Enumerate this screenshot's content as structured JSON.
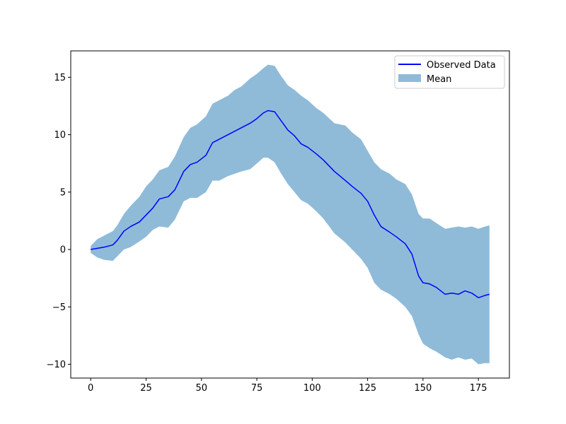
{
  "chart_data": {
    "type": "line",
    "title": "",
    "xlabel": "",
    "ylabel": "",
    "xlim": [
      -9,
      189
    ],
    "ylim": [
      -11.2,
      17.3
    ],
    "xticks": [
      0,
      25,
      50,
      75,
      100,
      125,
      150,
      175
    ],
    "yticks": [
      -10,
      -5,
      0,
      5,
      10,
      15
    ],
    "grid": false,
    "legend_position": "top-right",
    "colors": {
      "line": "#0000ff",
      "band": "#1f77b4",
      "band_opacity": 0.5
    },
    "series": [
      {
        "name": "Observed Data",
        "kind": "line",
        "x": [
          0,
          3,
          6,
          10,
          12,
          15,
          18,
          22,
          25,
          28,
          31,
          35,
          38,
          42,
          45,
          48,
          52,
          55,
          58,
          62,
          65,
          68,
          72,
          75,
          78,
          80,
          83,
          86,
          89,
          92,
          95,
          98,
          102,
          105,
          110,
          115,
          118,
          122,
          125,
          128,
          131,
          135,
          138,
          142,
          145,
          148,
          150,
          153,
          156,
          160,
          163,
          166,
          169,
          172,
          175,
          178,
          180
        ],
        "y": [
          0,
          0.1,
          0.2,
          0.4,
          0.8,
          1.6,
          2.0,
          2.4,
          3.0,
          3.6,
          4.4,
          4.6,
          5.2,
          6.8,
          7.4,
          7.6,
          8.2,
          9.3,
          9.6,
          10.0,
          10.3,
          10.6,
          11.0,
          11.4,
          11.9,
          12.1,
          12.0,
          11.2,
          10.4,
          9.9,
          9.2,
          8.9,
          8.3,
          7.8,
          6.8,
          6.0,
          5.5,
          4.9,
          4.2,
          3.0,
          2.0,
          1.5,
          1.1,
          0.5,
          -0.4,
          -2.3,
          -2.9,
          -3.0,
          -3.3,
          -3.9,
          -3.8,
          -3.9,
          -3.6,
          -3.8,
          -4.2,
          -4.0,
          -3.9
        ]
      },
      {
        "name": "Mean",
        "kind": "band",
        "x": [
          0,
          3,
          6,
          10,
          12,
          15,
          18,
          22,
          25,
          28,
          31,
          35,
          38,
          42,
          45,
          48,
          52,
          55,
          58,
          62,
          65,
          68,
          72,
          75,
          78,
          80,
          83,
          86,
          89,
          92,
          95,
          98,
          102,
          105,
          110,
          115,
          118,
          122,
          125,
          128,
          131,
          135,
          138,
          142,
          145,
          148,
          150,
          153,
          156,
          160,
          163,
          166,
          169,
          172,
          175,
          178,
          180
        ],
        "lower": [
          -0.3,
          -0.7,
          -0.9,
          -1.0,
          -0.6,
          0.0,
          0.2,
          0.7,
          1.1,
          1.7,
          2.0,
          1.9,
          2.6,
          4.2,
          4.5,
          4.5,
          5.0,
          6.0,
          6.0,
          6.4,
          6.6,
          6.8,
          7.0,
          7.5,
          8.0,
          8.0,
          7.6,
          6.6,
          5.7,
          5.0,
          4.3,
          4.0,
          3.3,
          2.7,
          1.4,
          0.6,
          0.0,
          -0.8,
          -1.6,
          -2.9,
          -3.5,
          -3.9,
          -4.3,
          -5.0,
          -5.8,
          -7.4,
          -8.2,
          -8.6,
          -8.9,
          -9.4,
          -9.6,
          -9.4,
          -9.6,
          -9.5,
          -10.0,
          -9.9,
          -9.9
        ],
        "upper": [
          0.3,
          0.9,
          1.2,
          1.6,
          2.1,
          3.1,
          3.8,
          4.6,
          5.5,
          6.1,
          6.9,
          7.2,
          8.1,
          9.8,
          10.6,
          10.9,
          11.6,
          12.7,
          13.0,
          13.4,
          13.9,
          14.2,
          14.9,
          15.3,
          15.8,
          16.1,
          16.0,
          15.1,
          14.3,
          13.9,
          13.4,
          13.0,
          12.3,
          11.9,
          11.0,
          10.8,
          10.2,
          9.6,
          8.6,
          7.6,
          7.0,
          6.6,
          6.1,
          5.7,
          4.8,
          3.1,
          2.7,
          2.7,
          2.3,
          1.8,
          1.9,
          2.0,
          1.9,
          2.0,
          1.8,
          2.0,
          2.1
        ]
      }
    ]
  }
}
